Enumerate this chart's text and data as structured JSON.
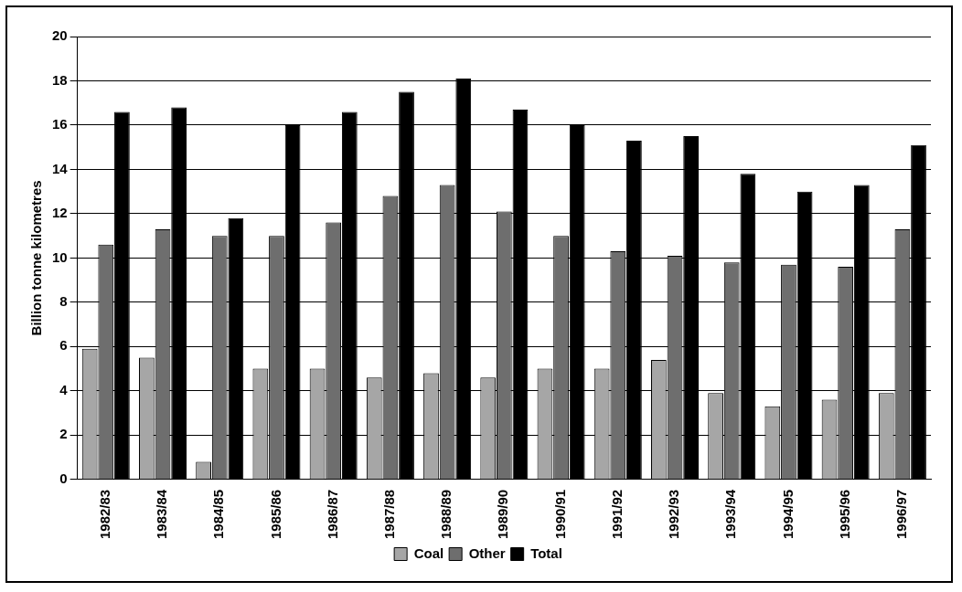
{
  "chart_data": {
    "type": "bar",
    "ylabel": "Billion tonne kilometres",
    "categories": [
      "1982/83",
      "1983/84",
      "1984/85",
      "1985/86",
      "1986/87",
      "1987/88",
      "1988/89",
      "1989/90",
      "1990/91",
      "1991/92",
      "1992/93",
      "1993/94",
      "1994/95",
      "1995/96",
      "1996/97"
    ],
    "series": [
      {
        "name": "Coal",
        "color": "#a6a6a6",
        "values": [
          5.9,
          5.5,
          0.8,
          5.0,
          5.0,
          4.6,
          4.8,
          4.6,
          5.0,
          5.0,
          5.4,
          3.9,
          3.3,
          3.6,
          3.9
        ]
      },
      {
        "name": "Other",
        "color": "#6e6e6e",
        "values": [
          10.6,
          11.3,
          11.0,
          11.0,
          11.6,
          12.8,
          13.3,
          12.1,
          11.0,
          10.3,
          10.1,
          9.8,
          9.7,
          9.6,
          11.3
        ]
      },
      {
        "name": "Total",
        "color": "#000000",
        "values": [
          16.6,
          16.8,
          11.8,
          16.0,
          16.6,
          17.5,
          18.1,
          16.7,
          16.0,
          15.3,
          15.5,
          13.8,
          13.0,
          13.3,
          15.1
        ]
      }
    ],
    "ylim": [
      0,
      20
    ],
    "yticks": [
      0,
      2,
      4,
      6,
      8,
      10,
      12,
      14,
      16,
      18,
      20
    ],
    "grid": "y",
    "legend": "bottom"
  }
}
